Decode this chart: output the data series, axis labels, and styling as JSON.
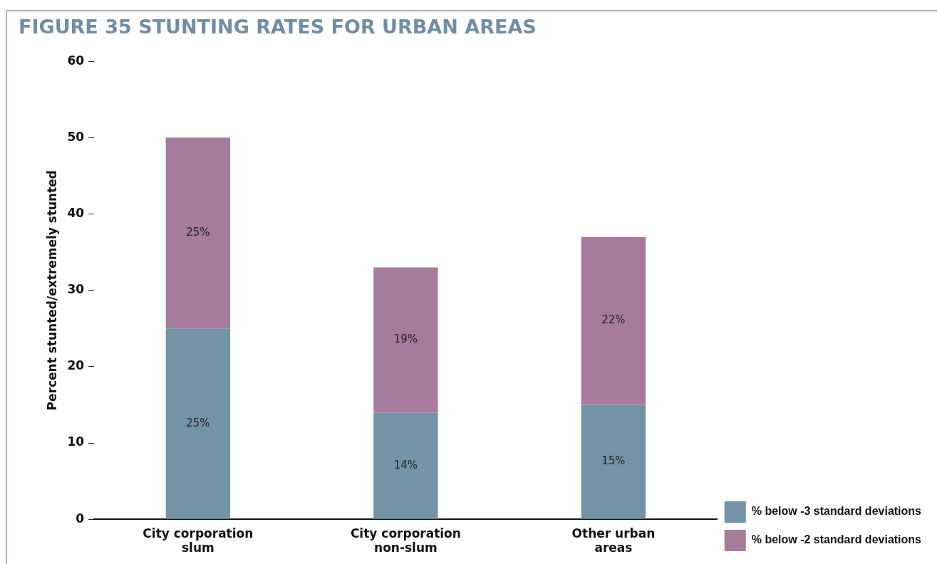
{
  "chart_data": {
    "type": "bar",
    "title": "FIGURE 35 STUNTING RATES FOR URBAN AREAS",
    "ylabel": "Percent stunted/extremely stunted",
    "categories": [
      "City corporation slum",
      "City corporation non-slum",
      "Other urban areas"
    ],
    "stacked": true,
    "series": [
      {
        "name": "% below -3 standard deviations",
        "color": "#7393a7",
        "values": [
          25,
          14,
          15
        ],
        "value_labels": [
          "25%",
          "14%",
          "15%"
        ]
      },
      {
        "name": "% below -2 standard deviations",
        "color": "#a77b9b",
        "values": [
          25,
          19,
          22
        ],
        "value_labels": [
          "25%",
          "19%",
          "22%"
        ]
      }
    ],
    "ylim": [
      0,
      60
    ],
    "yticks": [
      0,
      10,
      20,
      30,
      40,
      50,
      60
    ],
    "grid": false,
    "legend": "bottom right"
  }
}
